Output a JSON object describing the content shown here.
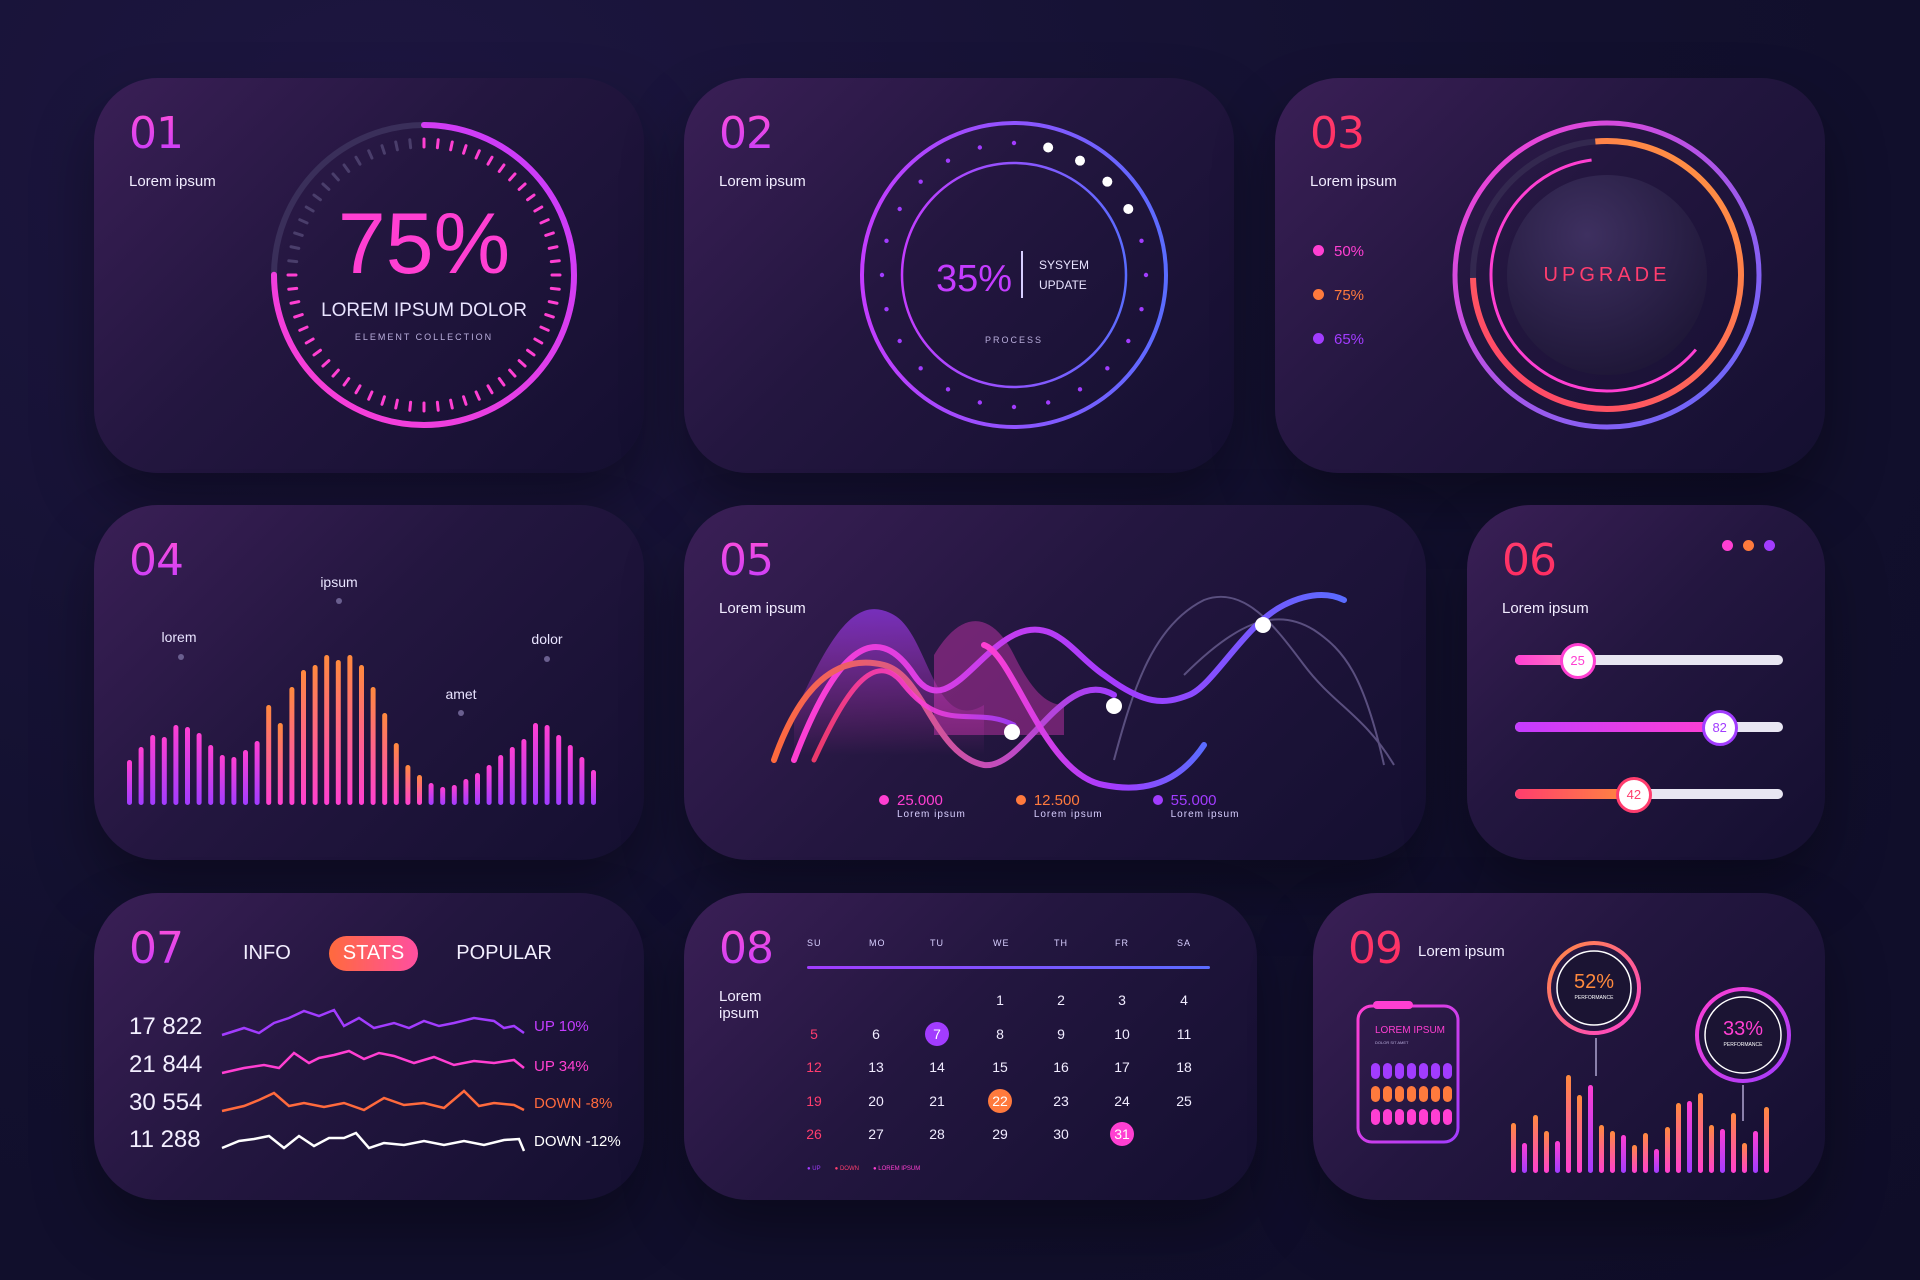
{
  "colors": {
    "pink": "#ff3fd2",
    "purple": "#a23cff",
    "orange": "#ff7a3d",
    "red": "#ff3d6e",
    "blue": "#5a6cff"
  },
  "card1": {
    "num": "01",
    "label": "Lorem ipsum",
    "value": "75%",
    "title": "LOREM IPSUM DOLOR",
    "subtitle": "ELEMENT COLLECTION",
    "progress": 0.75
  },
  "card2": {
    "num": "02",
    "label": "Lorem ipsum",
    "value": "35%",
    "side1": "SYSYEM",
    "side2": "UPDATE",
    "caption": "PROCESS",
    "progress": 0.35
  },
  "card3": {
    "num": "03",
    "label": "Lorem ipsum",
    "button": "UPGRADE",
    "legend": [
      {
        "value": "50%",
        "color": "#ff3fd2"
      },
      {
        "value": "75%",
        "color": "#ff7a3d"
      },
      {
        "value": "65%",
        "color": "#a23cff"
      }
    ]
  },
  "card4": {
    "num": "04",
    "annotations": [
      "lorem",
      "ipsum",
      "amet",
      "dolor"
    ]
  },
  "card5": {
    "num": "05",
    "label": "Lorem ipsum",
    "legend": [
      {
        "value": "25.000",
        "caption": "Lorem ipsum",
        "color": "#ff3fd2"
      },
      {
        "value": "12.500",
        "caption": "Lorem ipsum",
        "color": "#ff7a3d"
      },
      {
        "value": "55.000",
        "caption": "Lorem ipsum",
        "color": "#a23cff"
      }
    ]
  },
  "card6": {
    "num": "06",
    "label": "Lorem ipsum",
    "sliders": [
      {
        "value": "25",
        "fraction": 0.23
      },
      {
        "value": "82",
        "fraction": 0.76
      },
      {
        "value": "42",
        "fraction": 0.44
      }
    ]
  },
  "card7": {
    "num": "07",
    "tabs": [
      "INFO",
      "STATS",
      "POPULAR"
    ],
    "active_tab": "STATS",
    "rows": [
      {
        "number": "17 822",
        "status": "UP 10%",
        "color": "#c43cff"
      },
      {
        "number": "21 844",
        "status": "UP 34%",
        "color": "#ff3fd2"
      },
      {
        "number": "30 554",
        "status": "DOWN -8%",
        "color": "#ff6a3d"
      },
      {
        "number": "11 288",
        "status": "DOWN -12%",
        "color": "#ffffff"
      }
    ]
  },
  "card8": {
    "num": "08",
    "label": "Lorem ipsum",
    "days": [
      "SU",
      "MO",
      "TU",
      "WE",
      "TH",
      "FR",
      "SA"
    ],
    "weeks": [
      [
        "",
        "",
        "",
        "1",
        "2",
        "3",
        "4"
      ],
      [
        "5",
        "6",
        "7",
        "8",
        "9",
        "10",
        "11"
      ],
      [
        "12",
        "13",
        "14",
        "15",
        "16",
        "17",
        "18"
      ],
      [
        "19",
        "20",
        "21",
        "22",
        "23",
        "24",
        "25"
      ],
      [
        "26",
        "27",
        "28",
        "29",
        "30",
        "31",
        ""
      ]
    ],
    "highlighted": {
      "7": "#a23cff",
      "22": "#ff7a3d",
      "31": "#ff3fd2"
    },
    "legend": [
      "UP",
      "DOWN",
      "LOREM IPSUM"
    ]
  },
  "card9": {
    "num": "09",
    "label": "Lorem ipsum",
    "box_title": "LOREM IPSUM",
    "box_sub": "DOLOR SIT AMET",
    "perf1": "52%",
    "perf1_label": "PERFORMANCE",
    "perf2": "33%",
    "perf2_label": "PERFORMANCE"
  }
}
